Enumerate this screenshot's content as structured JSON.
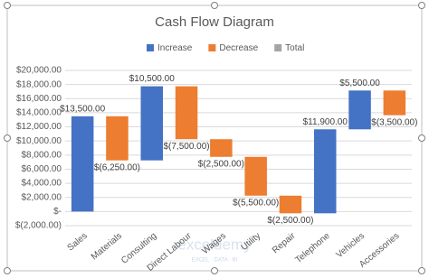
{
  "chart_data": {
    "type": "waterfall",
    "title": "Cash Flow Diagram",
    "legend": [
      {
        "name": "Increase",
        "color": "#4472c4"
      },
      {
        "name": "Decrease",
        "color": "#ed7d31"
      },
      {
        "name": "Total",
        "color": "#a5a5a5"
      }
    ],
    "categories": [
      "Sales",
      "Materials",
      "Consulting",
      "Direct Labour",
      "Wages",
      "Utility",
      "Repair",
      "Telephone",
      "Vehicles",
      "Accessories"
    ],
    "values": [
      13500,
      -6250,
      10500,
      -7500,
      -2500,
      -5500,
      -2500,
      11900,
      5500,
      -3500
    ],
    "value_labels": [
      "$13,500.00",
      "$(6,250.00)",
      "$10,500.00",
      "$(7,500.00)",
      "$(2,500.00)",
      "$(5,500.00)",
      "$(2,500.00)",
      "$11,900.00",
      "$5,500.00",
      "$(3,500.00)"
    ],
    "ylim": [
      -2000,
      20000
    ],
    "yticks": [
      {
        "value": -2000,
        "label": "$(2,000.00)"
      },
      {
        "value": 0,
        "label": "$-"
      },
      {
        "value": 2000,
        "label": "$2,000.00"
      },
      {
        "value": 4000,
        "label": "$4,000.00"
      },
      {
        "value": 6000,
        "label": "$6,000.00"
      },
      {
        "value": 8000,
        "label": "$8,000.00"
      },
      {
        "value": 10000,
        "label": "$10,000.00"
      },
      {
        "value": 12000,
        "label": "$12,000.00"
      },
      {
        "value": 14000,
        "label": "$14,000.00"
      },
      {
        "value": 16000,
        "label": "$16,000.00"
      },
      {
        "value": 18000,
        "label": "$18,000.00"
      },
      {
        "value": 20000,
        "label": "$20,000.00"
      }
    ],
    "grid": true,
    "watermark": {
      "name": "exceldemy",
      "tagline": "EXCEL · DATA · BI"
    }
  }
}
